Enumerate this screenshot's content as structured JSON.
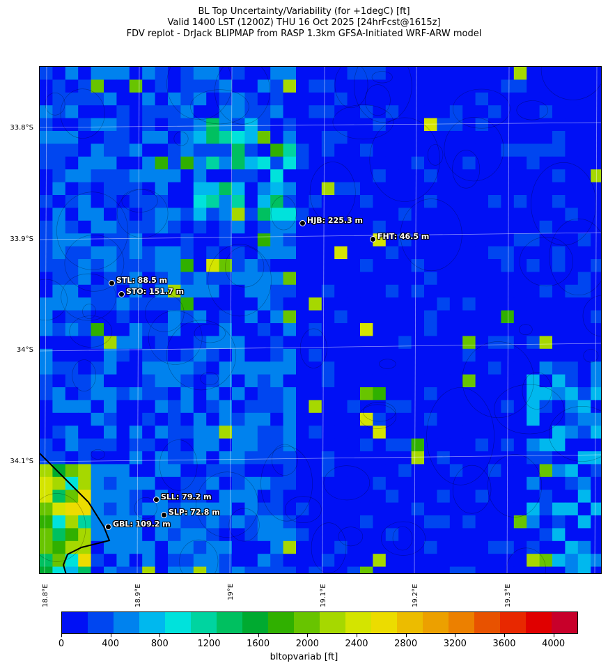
{
  "title": {
    "line1": "BL Top Uncertainty/Variability (for +1degC) [ft]",
    "line2": "Valid 1400 LST (1200Z) THU 16 Oct 2025 [24hrFcst@1615z]",
    "line3": "FDV replot - DrJack BLIPMAP from RASP 1.3km GFSA-Initiated WRF-ARW model"
  },
  "map": {
    "lat_labels": [
      "33.8°S",
      "33.9°S",
      "34°S",
      "34.1°S"
    ],
    "lon_labels": [
      "18.8°E",
      "18.9°E",
      "19°E",
      "19.1°E",
      "19.2°E",
      "19.3°E"
    ],
    "stations": [
      {
        "code": "HJB",
        "label": "HJB: 225.3 m"
      },
      {
        "code": "FHT",
        "label": "FHT: 46.5 m"
      },
      {
        "code": "STL",
        "label": "STL: 88.5 m"
      },
      {
        "code": "STO",
        "label": "STO: 151.7 m"
      },
      {
        "code": "SLL",
        "label": "SLL: 79.2 m"
      },
      {
        "code": "SLP",
        "label": "SLP: 72.8 m"
      },
      {
        "code": "GBL",
        "label": "GBL: 109.2 m"
      }
    ]
  },
  "colorbar": {
    "label": "bltopvariab [ft]",
    "ticks": [
      "0",
      "400",
      "800",
      "1200",
      "1600",
      "2000",
      "2400",
      "2800",
      "3200",
      "3600",
      "4000"
    ],
    "colors": [
      "#0010f5",
      "#0046f0",
      "#0082ee",
      "#00b8ee",
      "#00e2dc",
      "#00d4a0",
      "#00c060",
      "#00aa30",
      "#30b000",
      "#68c400",
      "#a6d800",
      "#d4e400",
      "#ecdc00",
      "#ecbc00",
      "#eca000",
      "#ec8000",
      "#e85200",
      "#e82800",
      "#e00000",
      "#c8002a"
    ]
  }
}
